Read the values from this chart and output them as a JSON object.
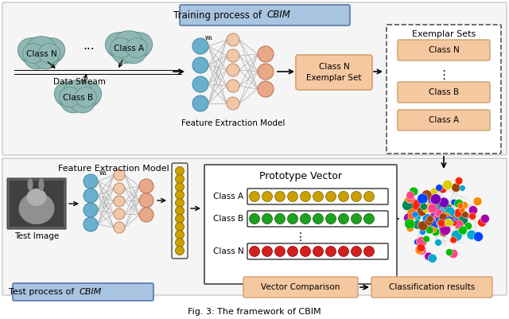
{
  "fig_width": 6.4,
  "fig_height": 4.01,
  "dpi": 100,
  "bg_color": "#ffffff",
  "cloud_color": "#8fb8b4",
  "cloud_edge": "#6a9490",
  "node_blue": "#6ab0cc",
  "node_peach": "#f0c8a8",
  "node_salmon": "#e8a888",
  "box_peach_fill": "#f5c8a0",
  "box_peach_edge": "#d4a070",
  "box_blue_fill": "#a8c4e0",
  "box_blue_edge": "#5878a8",
  "exemplar_box_fill": "#f5c8a0",
  "exemplar_box_edge": "#c8a070",
  "gold_dot": "#c8a000",
  "green_dot": "#20a020",
  "red_dot": "#d02020",
  "caption": "Fig. 3: The framework of CBIM",
  "title_top_plain": "Training process of ",
  "title_top_italic": "CBIM",
  "title_bottom_plain": "Test process of ",
  "title_bottom_italic": "CBIM",
  "label_data_stream": "Data Stream",
  "label_feature_model_top": "Feature Extraction Model",
  "label_feature_model_bottom": "Feature Extraction Model",
  "label_exemplar_sets": "Exemplar Sets",
  "label_prototype": "Prototype Vector",
  "label_vector_comp": "Vector Comparison",
  "label_classification": "Classification results",
  "label_test_image": "Test Image"
}
